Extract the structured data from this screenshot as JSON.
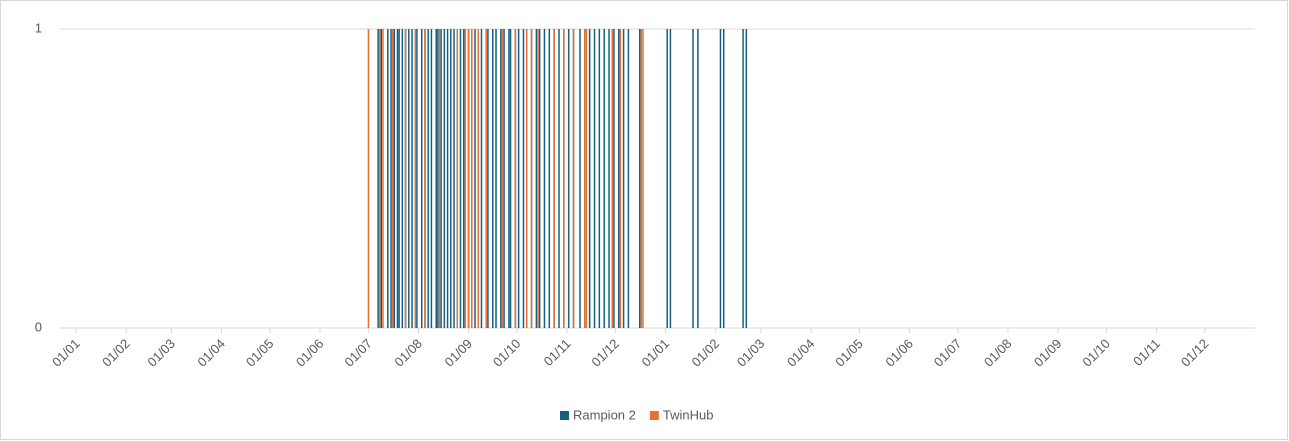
{
  "chart_data": {
    "type": "bar",
    "xlim": [
      -10,
      730
    ],
    "xticks": [
      {
        "value": 0,
        "label": "01/01"
      },
      {
        "value": 31,
        "label": "01/02"
      },
      {
        "value": 59,
        "label": "01/03"
      },
      {
        "value": 90,
        "label": "01/04"
      },
      {
        "value": 120,
        "label": "01/05"
      },
      {
        "value": 151,
        "label": "01/06"
      },
      {
        "value": 181,
        "label": "01/07"
      },
      {
        "value": 212,
        "label": "01/08"
      },
      {
        "value": 243,
        "label": "01/09"
      },
      {
        "value": 273,
        "label": "01/10"
      },
      {
        "value": 304,
        "label": "01/11"
      },
      {
        "value": 334,
        "label": "01/12"
      },
      {
        "value": 365,
        "label": "01/01"
      },
      {
        "value": 396,
        "label": "01/02"
      },
      {
        "value": 424,
        "label": "01/03"
      },
      {
        "value": 455,
        "label": "01/04"
      },
      {
        "value": 485,
        "label": "01/05"
      },
      {
        "value": 516,
        "label": "01/06"
      },
      {
        "value": 546,
        "label": "01/07"
      },
      {
        "value": 577,
        "label": "01/08"
      },
      {
        "value": 608,
        "label": "01/09"
      },
      {
        "value": 638,
        "label": "01/10"
      },
      {
        "value": 669,
        "label": "01/11"
      },
      {
        "value": 699,
        "label": "01/12"
      }
    ],
    "ylim": [
      0,
      1
    ],
    "yticks": [
      0,
      1
    ],
    "grid": true,
    "series": [
      {
        "name": "Rampion 2",
        "color": "#156082",
        "x": [
          187,
          189,
          193,
          195,
          197,
          199,
          200,
          202,
          204,
          206,
          208,
          210,
          211,
          214,
          216,
          218,
          220,
          223,
          224,
          226,
          228,
          230,
          232,
          234,
          236,
          238,
          240,
          243,
          245,
          247,
          249,
          251,
          254,
          255,
          258,
          260,
          263,
          265,
          268,
          269,
          272,
          274,
          277,
          279,
          282,
          285,
          287,
          290,
          293,
          296,
          299,
          302,
          305,
          308,
          312,
          315,
          318,
          321,
          324,
          327,
          330,
          333,
          336,
          339,
          342,
          349,
          366,
          368,
          382,
          385,
          399,
          401,
          413,
          415
        ],
        "values": [
          1,
          1,
          1,
          1,
          1,
          1,
          1,
          1,
          1,
          1,
          1,
          1,
          1,
          1,
          1,
          1,
          1,
          1,
          1,
          1,
          1,
          1,
          1,
          1,
          1,
          1,
          1,
          1,
          1,
          1,
          1,
          1,
          1,
          1,
          1,
          1,
          1,
          1,
          1,
          1,
          1,
          1,
          1,
          1,
          1,
          1,
          1,
          1,
          1,
          1,
          1,
          1,
          1,
          1,
          1,
          1,
          1,
          1,
          1,
          1,
          1,
          1,
          1,
          1,
          1,
          1,
          1,
          1,
          1,
          1,
          1,
          1,
          1,
          1
        ]
      },
      {
        "name": "TwinHub",
        "color": "#e97132",
        "x": [
          181,
          188,
          190,
          196,
          204,
          210,
          216,
          225,
          236,
          241,
          243,
          245,
          249,
          254,
          264,
          272,
          279,
          282,
          286,
          296,
          302,
          308,
          315,
          316,
          332,
          337,
          350,
          351
        ],
        "values": [
          1,
          1,
          1,
          1,
          1,
          1,
          1,
          1,
          1,
          1,
          1,
          1,
          1,
          1,
          1,
          1,
          1,
          1,
          1,
          1,
          1,
          1,
          1,
          1,
          1,
          1,
          1,
          1
        ]
      }
    ]
  }
}
